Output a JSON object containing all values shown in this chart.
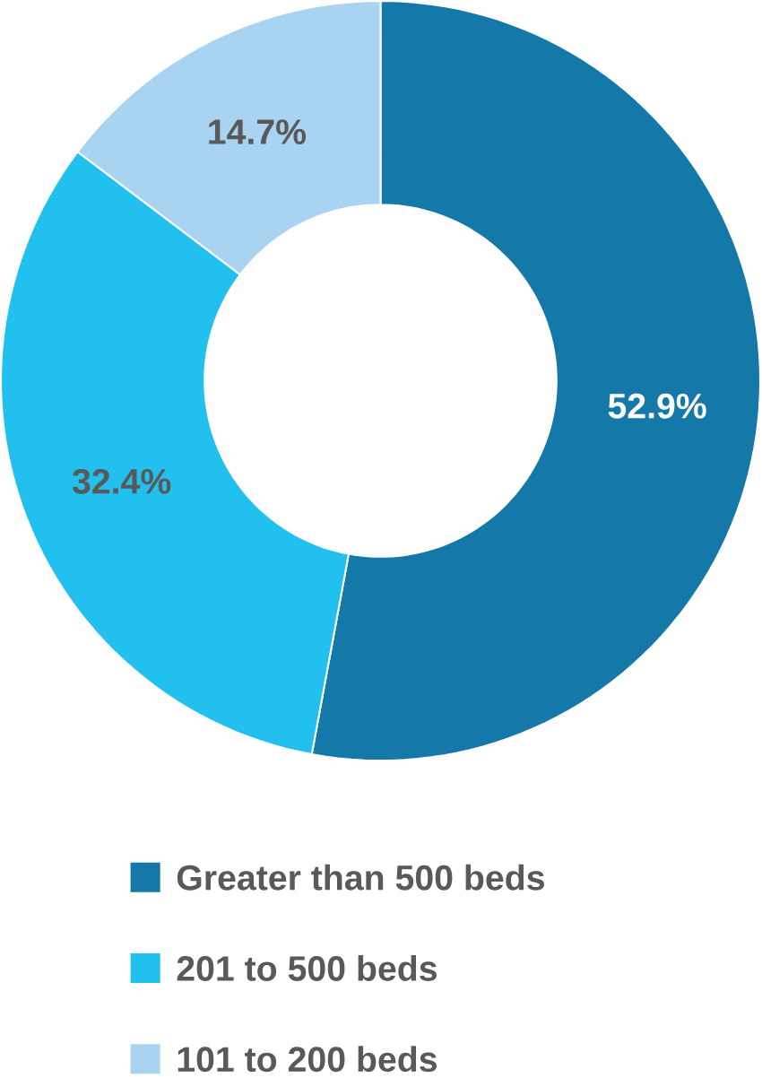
{
  "chart_data": {
    "type": "donut",
    "categories": [
      "Greater than 500 beds",
      "201 to 500 beds",
      "101 to 200 beds"
    ],
    "values": [
      52.9,
      32.4,
      14.7
    ],
    "colors": [
      "#1478a8",
      "#22c0ee",
      "#a8d4f2"
    ],
    "value_labels": [
      "52.9%",
      "32.4%",
      "14.7%"
    ],
    "legend": "bottom"
  }
}
